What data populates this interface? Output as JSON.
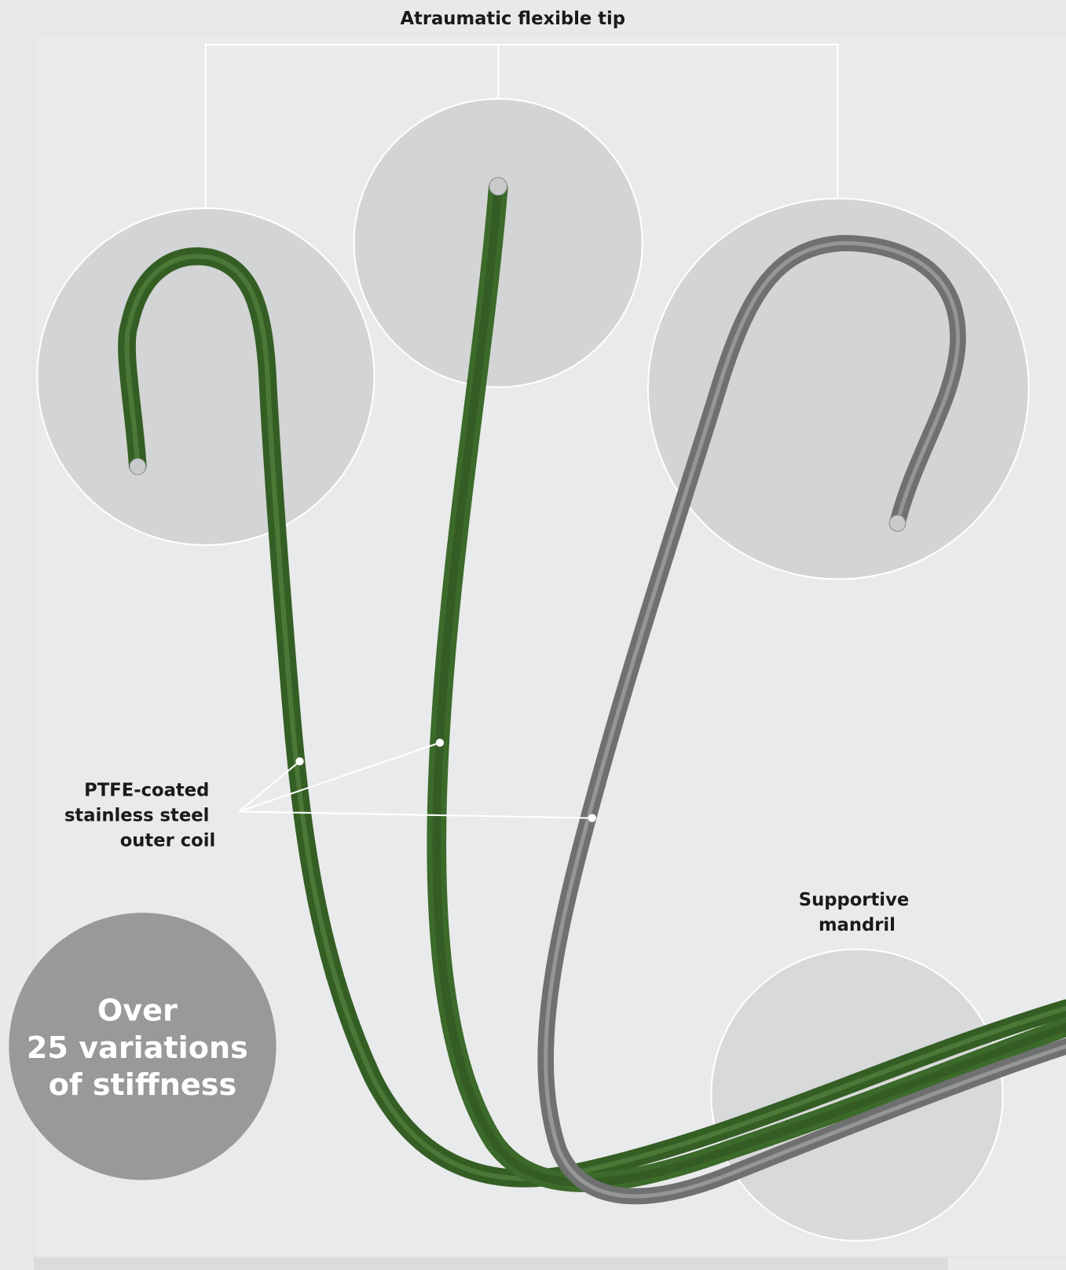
{
  "labels": {
    "tip": "Atraumatic flexible tip",
    "coil": [
      "PTFE-coated",
      "stainless steel",
      "outer coil"
    ],
    "mandril": [
      "Supportive",
      "mandril"
    ]
  },
  "badge": [
    "Over",
    "25 variations",
    "of stiffness"
  ]
}
